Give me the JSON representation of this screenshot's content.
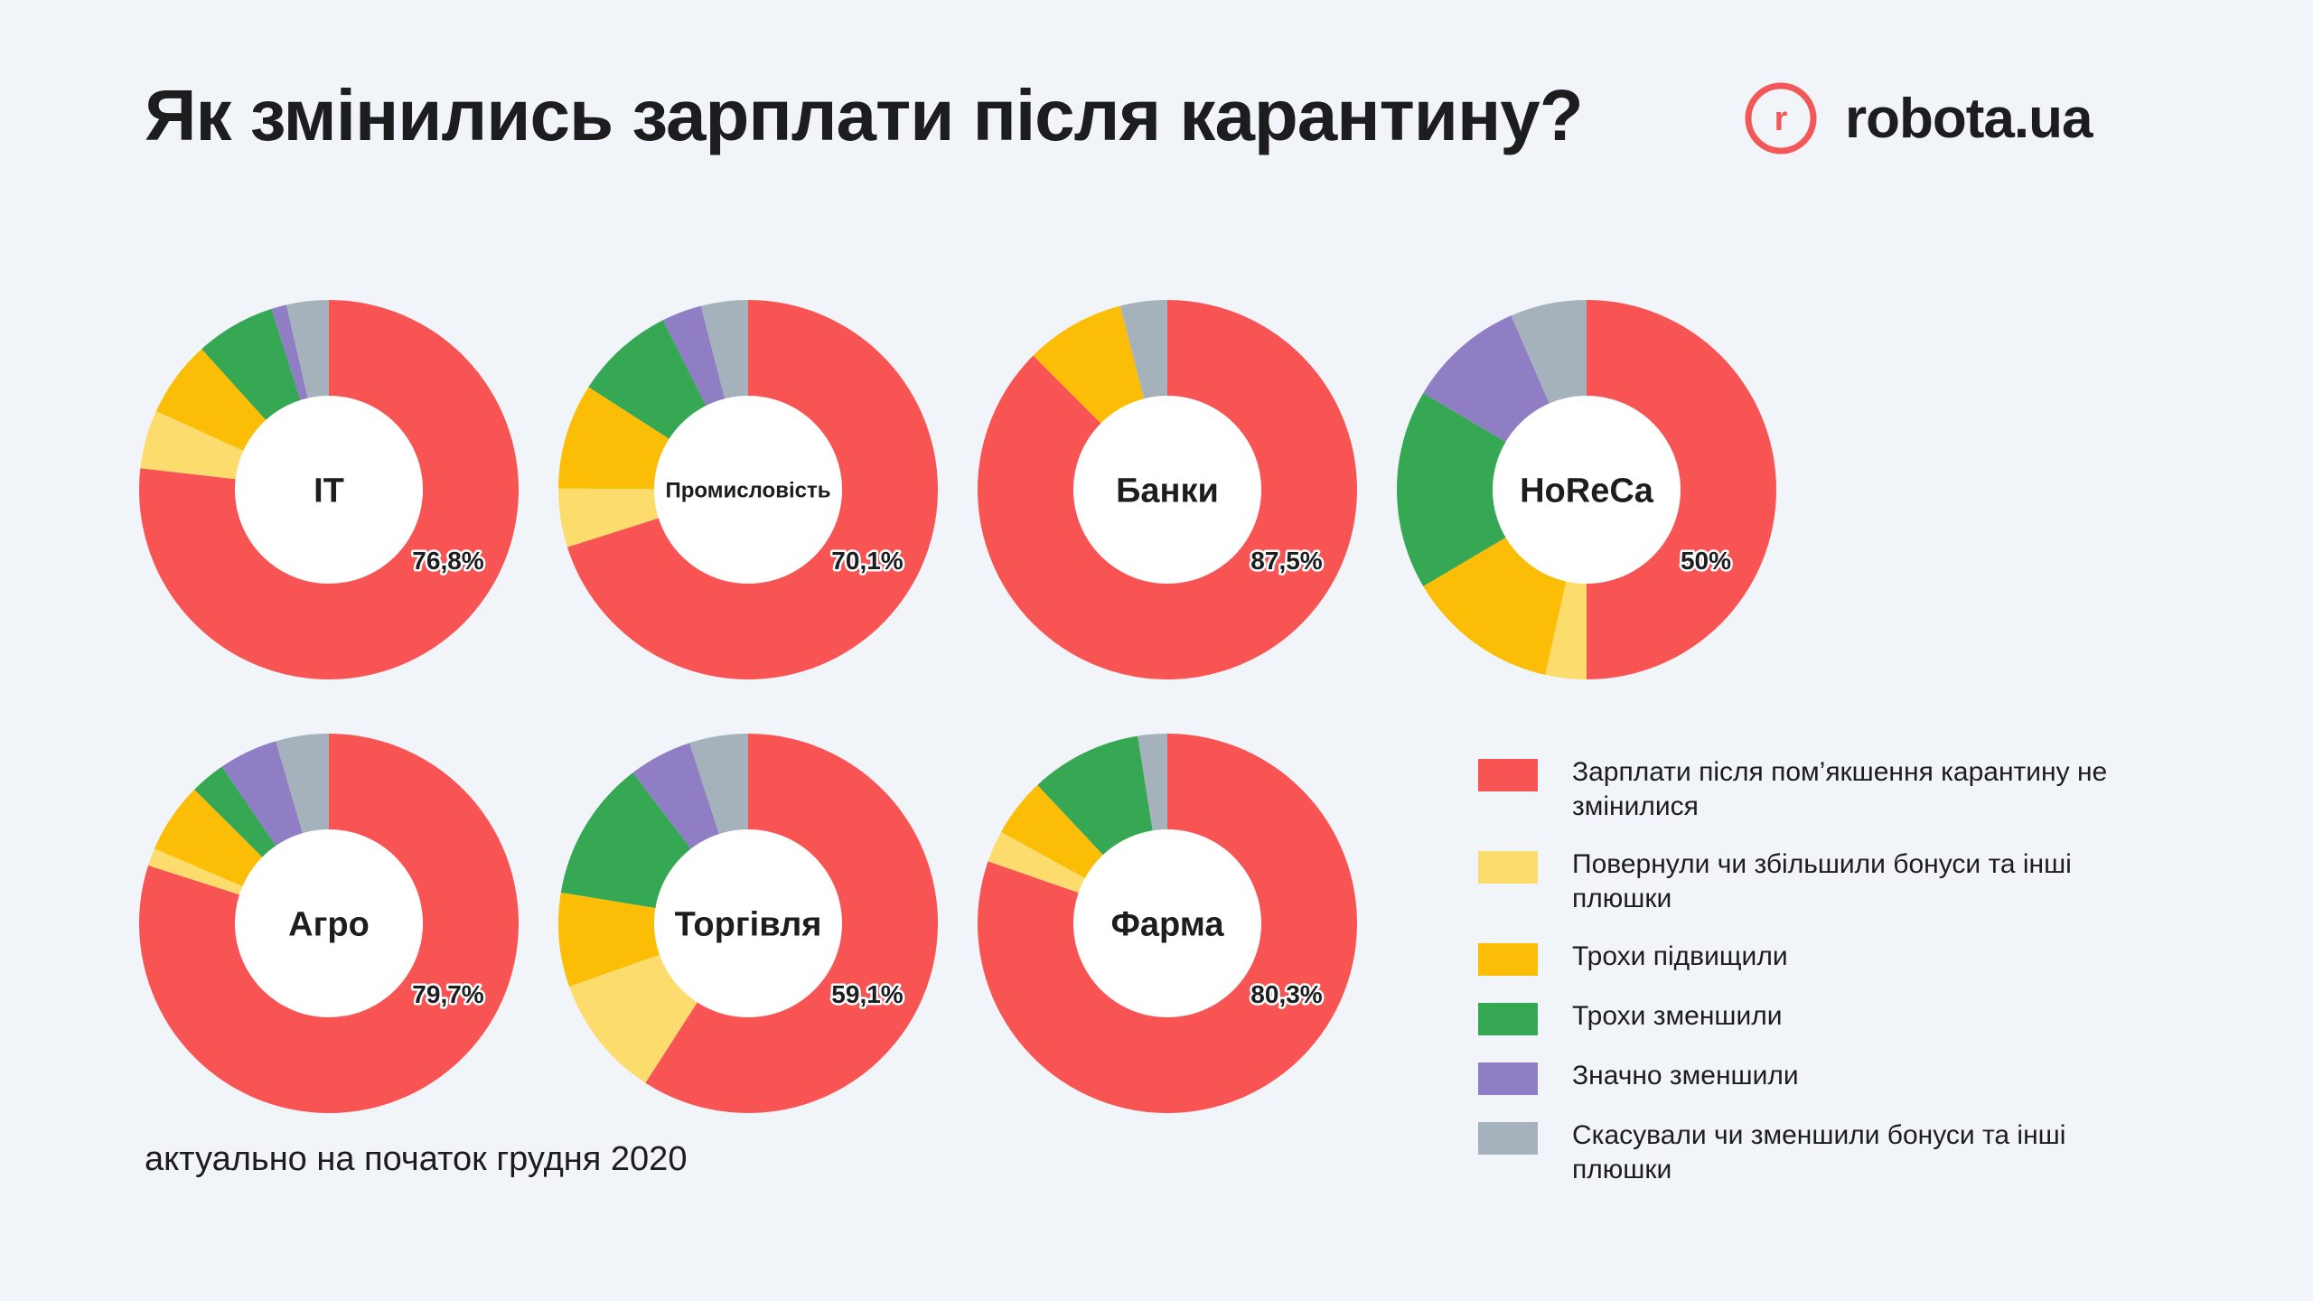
{
  "title": "Як змінились зарплати після карантину?",
  "logo": {
    "text": "robota.ua",
    "mark": "r",
    "color": "#f25858"
  },
  "footnote": "актуально на початок грудня 2020",
  "colors": [
    "#f95454",
    "#fddc6e",
    "#fbbd06",
    "#36a853",
    "#8f7ec4",
    "#a5b1bb"
  ],
  "legend": [
    {
      "label": "Зарплати після пом’якшення карантину не змінилися",
      "color": "#f95454"
    },
    {
      "label": "Повернули чи збільшили бонуси та інші плюшки",
      "color": "#fddc6e"
    },
    {
      "label": "Трохи підвищили",
      "color": "#fbbd06"
    },
    {
      "label": "Трохи зменшили",
      "color": "#36a853"
    },
    {
      "label": "Значно зменшили",
      "color": "#8f7ec4"
    },
    {
      "label": "Скасували чи зменшили бонуси та інші плюшки",
      "color": "#a5b1bb"
    }
  ],
  "chart_data": [
    {
      "type": "pie",
      "name": "IT",
      "value_label": "76,8%",
      "categories": [
        "Зарплати після пом’якшення карантину не змінилися",
        "Повернули чи збільшили бонуси та інші плюшки",
        "Трохи підвищили",
        "Трохи зменшили",
        "Значно зменшили",
        "Скасували чи зменшили бонуси та інші плюшки"
      ],
      "values": [
        76.8,
        5.0,
        6.5,
        6.8,
        1.3,
        3.6
      ]
    },
    {
      "type": "pie",
      "name": "Промисловість",
      "value_label": "70,1%",
      "categories": [
        "Зарплати після пом’якшення карантину не змінилися",
        "Повернули чи збільшили бонуси та інші плюшки",
        "Трохи підвищили",
        "Трохи зменшили",
        "Значно зменшили",
        "Скасували чи зменшили бонуси та інші плюшки"
      ],
      "values": [
        70.1,
        5.0,
        9.0,
        8.5,
        3.4,
        4.0
      ]
    },
    {
      "type": "pie",
      "name": "Банки",
      "value_label": "87,5%",
      "categories": [
        "Зарплати після пом’якшення карантину не змінилися",
        "Повернули чи збільшили бонуси та інші плюшки",
        "Трохи підвищили",
        "Трохи зменшили",
        "Значно зменшили",
        "Скасували чи зменшили бонуси та інші плюшки"
      ],
      "values": [
        87.5,
        0,
        8.5,
        0,
        0,
        4.0
      ]
    },
    {
      "type": "pie",
      "name": "HoReCa",
      "value_label": "50%",
      "categories": [
        "Зарплати після пом’якшення карантину не змінилися",
        "Повернули чи збільшили бонуси та інші плюшки",
        "Трохи підвищили",
        "Трохи зменшили",
        "Значно зменшили",
        "Скасували чи зменшили бонуси та інші плюшки"
      ],
      "values": [
        50.0,
        3.5,
        13.0,
        17.0,
        10.0,
        6.5
      ]
    },
    {
      "type": "pie",
      "name": "Агро",
      "value_label": "79,7%",
      "categories": [
        "Зарплати після пом’якшення карантину не змінилися",
        "Повернули чи збільшили бонуси та інші плюшки",
        "Трохи підвищили",
        "Трохи зменшили",
        "Значно зменшили",
        "Скасували чи зменшили бонуси та інші плюшки"
      ],
      "values": [
        79.7,
        1.5,
        6.0,
        3.0,
        5.0,
        4.5
      ]
    },
    {
      "type": "pie",
      "name": "Торгівля",
      "value_label": "59,1%",
      "categories": [
        "Зарплати після пом’якшення карантину не змінилися",
        "Повернули чи збільшили бонуси та інші плюшки",
        "Трохи підвищили",
        "Трохи зменшили",
        "Значно зменшили",
        "Скасували чи зменшили бонуси та інші плюшки"
      ],
      "values": [
        59.1,
        10.5,
        8.0,
        12.0,
        5.4,
        5.0
      ]
    },
    {
      "type": "pie",
      "name": "Фарма",
      "value_label": "80,3%",
      "categories": [
        "Зарплати після пом’якшення карантину не змінилися",
        "Повернули чи збільшили бонуси та інші плюшки",
        "Трохи підвищили",
        "Трохи зменшили",
        "Значно зменшили",
        "Скасували чи зменшили бонуси та інші плюшки"
      ],
      "values": [
        80.3,
        2.7,
        5.0,
        9.5,
        0,
        2.5
      ]
    }
  ]
}
